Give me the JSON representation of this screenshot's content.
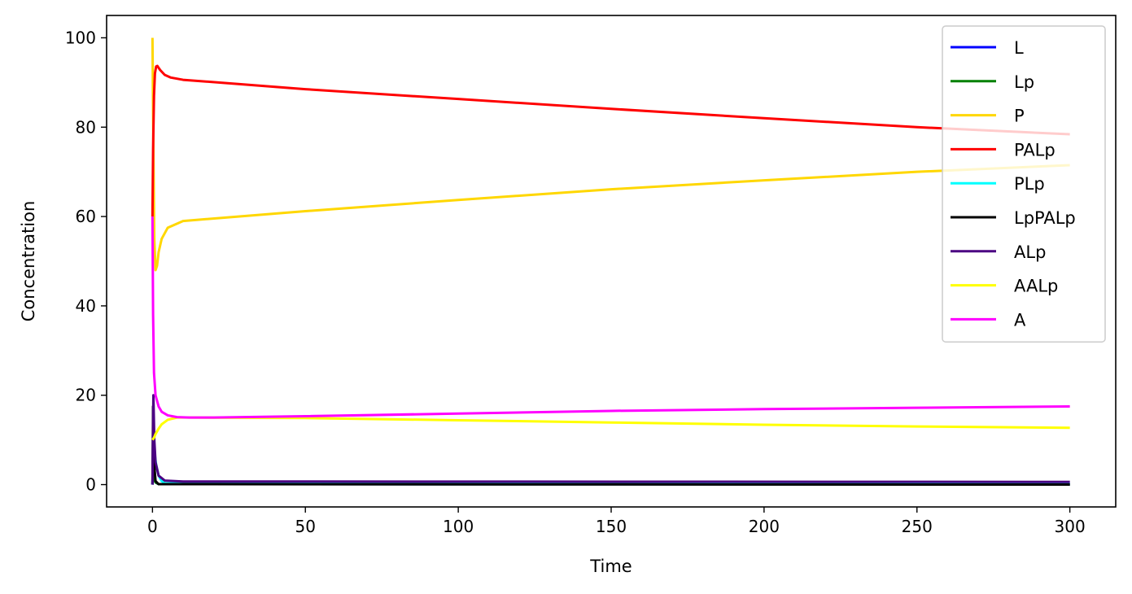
{
  "chart_data": {
    "type": "line",
    "title": "",
    "xlabel": "Time",
    "ylabel": "Concentration",
    "xlim": [
      -15,
      315
    ],
    "ylim": [
      -5,
      105
    ],
    "xticks": [
      0,
      50,
      100,
      150,
      200,
      250,
      300
    ],
    "yticks": [
      0,
      20,
      40,
      60,
      80,
      100
    ],
    "grid": false,
    "legend_position": "top-right",
    "series": [
      {
        "name": "L",
        "color": "#0000ff",
        "x": [
          0,
          0.2,
          0.6,
          1,
          2,
          300
        ],
        "y": [
          0,
          5,
          1.5,
          0.5,
          0.1,
          0.05
        ]
      },
      {
        "name": "Lp",
        "color": "#008000",
        "x": [
          0,
          0.3,
          1,
          2,
          300
        ],
        "y": [
          0,
          2,
          0.5,
          0.1,
          0.05
        ]
      },
      {
        "name": "P",
        "color": "#ffd700",
        "x": [
          0,
          0.3,
          0.6,
          1,
          1.5,
          2,
          3,
          5,
          10,
          50,
          100,
          150,
          200,
          250,
          300
        ],
        "y": [
          100,
          75,
          55,
          48,
          49,
          52,
          55,
          57.5,
          59,
          61.2,
          63.7,
          66.1,
          68.1,
          70,
          71.5
        ]
      },
      {
        "name": "PALp",
        "color": "#ff0000",
        "x": [
          0,
          0.2,
          0.5,
          0.8,
          1.2,
          1.6,
          2.5,
          4,
          6,
          10,
          50,
          100,
          150,
          200,
          250,
          300
        ],
        "y": [
          60,
          75,
          87,
          92,
          93.6,
          93.7,
          92.8,
          91.7,
          91.1,
          90.6,
          88.5,
          86.3,
          84.1,
          82,
          80,
          78.4
        ]
      },
      {
        "name": "PLp",
        "color": "#00ffff",
        "x": [
          0,
          0.3,
          0.7,
          1.2,
          2,
          3,
          4,
          300
        ],
        "y": [
          0,
          11,
          7,
          4.5,
          2,
          0.8,
          0.3,
          0.1
        ]
      },
      {
        "name": "LpPALp",
        "color": "#000000",
        "x": [
          0,
          0.2,
          0.5,
          1,
          2,
          300
        ],
        "y": [
          0,
          17.5,
          5,
          0.8,
          0.1,
          0
        ]
      },
      {
        "name": "ALp",
        "color": "#4b0082",
        "x": [
          0,
          0.3,
          0.6,
          1,
          2,
          4,
          10,
          300
        ],
        "y": [
          0,
          20,
          10,
          5,
          2,
          0.9,
          0.7,
          0.6
        ]
      },
      {
        "name": "AALp",
        "color": "#ffff00",
        "x": [
          0,
          0.5,
          1,
          2,
          3,
          5,
          8,
          12,
          50,
          100,
          150,
          200,
          250,
          300
        ],
        "y": [
          10,
          10.5,
          11.3,
          12.5,
          13.5,
          14.5,
          15,
          15,
          14.9,
          14.4,
          13.9,
          13.4,
          13,
          12.7
        ]
      },
      {
        "name": "A",
        "color": "#ff00ff",
        "x": [
          0,
          0.2,
          0.5,
          1,
          2,
          3,
          5,
          8,
          12,
          20,
          50,
          100,
          150,
          200,
          250,
          300
        ],
        "y": [
          60,
          38,
          25,
          20,
          17.5,
          16.3,
          15.5,
          15.1,
          15,
          15,
          15.3,
          15.9,
          16.5,
          16.9,
          17.2,
          17.5
        ]
      }
    ]
  }
}
